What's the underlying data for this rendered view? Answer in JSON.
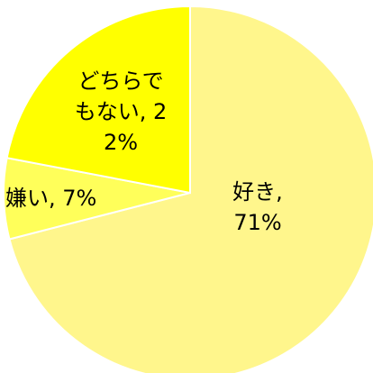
{
  "chart_data": {
    "type": "pie",
    "categories": [
      "好き",
      "嫌い",
      "どちらでもない"
    ],
    "values": [
      71,
      7,
      22
    ],
    "value_labels": [
      "71%",
      "7%",
      "22%"
    ],
    "label_separator": ",",
    "colors": [
      "#fff68c",
      "#ffff5a",
      "#ffff00"
    ]
  }
}
